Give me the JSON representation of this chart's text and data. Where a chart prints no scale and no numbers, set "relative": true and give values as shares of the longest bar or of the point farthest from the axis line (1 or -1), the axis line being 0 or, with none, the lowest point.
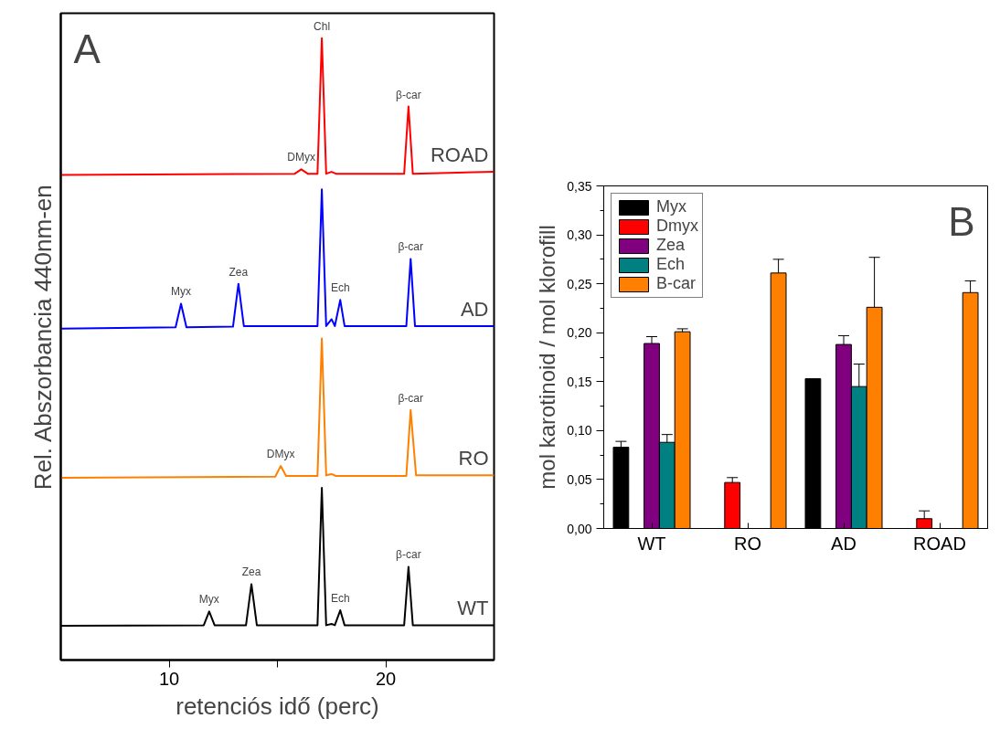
{
  "chart_data": [
    {
      "type": "line",
      "relative": true,
      "xlabel": "retenciós idő (perc)",
      "ylabel": "Rel. Abszorbancia 440nm-en",
      "xlim": [
        5,
        25
      ],
      "xticks": [
        10,
        {
          "value": 15,
          "label": null
        },
        20
      ],
      "tick_labels": "x",
      "grid": false,
      "legend": false,
      "marker": "none",
      "line_style": "solid",
      "series": [
        {
          "name": "ROAD",
          "color": "#ff0000",
          "x": [
            5,
            15.8,
            16.1,
            16.4,
            16.85,
            17.05,
            17.25,
            17.5,
            17.7,
            20.85,
            21.05,
            21.25,
            25
          ],
          "values": [
            0.78,
            0.782,
            0.789,
            0.782,
            0.782,
            1.0,
            0.782,
            0.785,
            0.782,
            0.782,
            0.89,
            0.782,
            0.785
          ]
        },
        {
          "name": "AD",
          "color": "#0000ff",
          "x": [
            5,
            10.3,
            10.55,
            10.8,
            12.95,
            13.2,
            13.45,
            16.85,
            17.05,
            17.25,
            17.5,
            17.65,
            17.9,
            18.1,
            20.95,
            21.15,
            21.35,
            25
          ],
          "values": [
            0.533,
            0.535,
            0.573,
            0.535,
            0.536,
            0.605,
            0.537,
            0.537,
            0.757,
            0.537,
            0.548,
            0.537,
            0.579,
            0.537,
            0.537,
            0.645,
            0.537,
            0.537
          ]
        },
        {
          "name": "RO",
          "color": "#ff8000",
          "x": [
            5,
            14.9,
            15.15,
            15.4,
            16.85,
            17.05,
            17.25,
            17.5,
            17.7,
            20.95,
            21.15,
            21.4,
            25
          ],
          "values": [
            0.293,
            0.295,
            0.312,
            0.296,
            0.296,
            0.517,
            0.297,
            0.299,
            0.296,
            0.296,
            0.402,
            0.297,
            0.297
          ]
        },
        {
          "name": "WT",
          "color": "#000000",
          "x": [
            5,
            11.6,
            11.85,
            12.1,
            13.55,
            13.8,
            14.05,
            16.85,
            17.05,
            17.25,
            17.5,
            17.65,
            17.9,
            18.1,
            20.85,
            21.05,
            21.25,
            25
          ],
          "values": [
            0.055,
            0.056,
            0.078,
            0.056,
            0.056,
            0.122,
            0.056,
            0.056,
            0.277,
            0.056,
            0.058,
            0.056,
            0.08,
            0.056,
            0.056,
            0.15,
            0.056,
            0.056
          ]
        }
      ],
      "annotations": [
        "A",
        {
          "text": "Chl",
          "x": 17.05,
          "y": 1.0
        },
        {
          "text": "DMyx",
          "x": 16.1,
          "y": 0.789
        },
        {
          "text": "β-car",
          "x": 21.05,
          "y": 0.89
        },
        {
          "text": "Myx",
          "x": 10.55,
          "y": 0.573
        },
        {
          "text": "Zea",
          "x": 13.2,
          "y": 0.605
        },
        {
          "text": "Ech",
          "x": 17.9,
          "y": 0.579
        },
        {
          "text": "β-car",
          "x": 21.15,
          "y": 0.645
        },
        {
          "text": "DMyx",
          "x": 15.15,
          "y": 0.312
        },
        {
          "text": "β-car",
          "x": 21.15,
          "y": 0.402
        },
        {
          "text": "Myx",
          "x": 11.85,
          "y": 0.078
        },
        {
          "text": "Zea",
          "x": 13.8,
          "y": 0.122
        },
        {
          "text": "Ech",
          "x": 17.9,
          "y": 0.08
        },
        {
          "text": "β-car",
          "x": 21.05,
          "y": 0.15
        }
      ]
    },
    {
      "type": "bar",
      "ylabel": "mol karotinoid / mol klorofill",
      "categories": [
        "WT",
        "RO",
        "AD",
        "ROAD"
      ],
      "ylim": [
        0,
        0.35
      ],
      "yticks": [
        {
          "value": 0,
          "label": "0,00"
        },
        {
          "value": 0.05,
          "label": "0,05"
        },
        {
          "value": 0.1,
          "label": "0,10"
        },
        {
          "value": 0.15,
          "label": "0,15"
        },
        {
          "value": 0.2,
          "label": "0,20"
        },
        {
          "value": 0.25,
          "label": "0,25"
        },
        {
          "value": 0.3,
          "label": "0,30"
        },
        {
          "value": 0.35,
          "label": "0,35"
        }
      ],
      "grid": false,
      "legend": "top left",
      "series": [
        {
          "name": "Myx",
          "color": "#000000",
          "values": [
            0.083,
            null,
            0.153,
            null
          ],
          "errors": [
            0.006,
            null,
            null,
            null
          ]
        },
        {
          "name": "Dmyx",
          "color": "#ff0000",
          "values": [
            null,
            0.047,
            null,
            0.01
          ],
          "errors": [
            null,
            0.005,
            null,
            0.008
          ]
        },
        {
          "name": "Zea",
          "color": "#800080",
          "values": [
            0.189,
            null,
            0.188,
            null
          ],
          "errors": [
            0.007,
            null,
            0.009,
            null
          ]
        },
        {
          "name": "Ech",
          "color": "#008080",
          "values": [
            0.088,
            null,
            0.145,
            null
          ],
          "errors": [
            0.008,
            null,
            0.023,
            null
          ]
        },
        {
          "name": "B-car",
          "color": "#ff8000",
          "values": [
            0.201,
            0.261,
            0.226,
            0.241
          ],
          "errors": [
            0.003,
            0.014,
            0.051,
            0.012
          ]
        }
      ],
      "annotations": [
        "B"
      ]
    }
  ]
}
